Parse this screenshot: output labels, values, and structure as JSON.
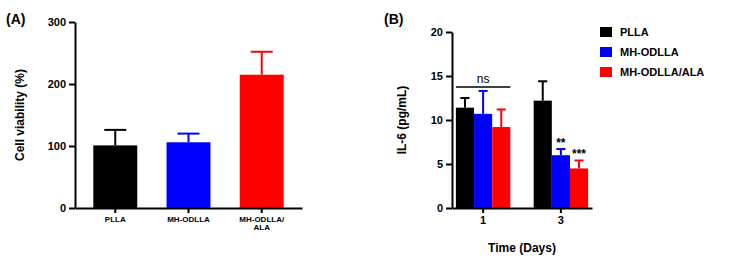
{
  "chart_data": [
    {
      "type": "bar",
      "title": "(A)",
      "categories": [
        "PLLA",
        "MH-ODLLA",
        "MH-ODLLA/\nALA"
      ],
      "values": [
        101,
        106,
        215
      ],
      "errors": [
        25,
        14,
        37
      ],
      "colors": [
        "#000000",
        "#0000ff",
        "#ff0000"
      ],
      "ylabel": "Cell viability (%)",
      "ylim": [
        0,
        300
      ],
      "yticks": [
        0,
        100,
        200,
        300
      ]
    },
    {
      "type": "bar",
      "title": "(B)",
      "categories": [
        "1",
        "3"
      ],
      "xlabel": "Time (Days)",
      "ylabel": "IL-6 (pg/mL)",
      "ylim": [
        0,
        20
      ],
      "yticks": [
        0,
        5,
        10,
        15,
        20
      ],
      "legend": "upper right",
      "series": [
        {
          "name": "PLLA",
          "color": "#000000",
          "values": [
            11.4,
            12.2
          ],
          "errors": [
            1.1,
            2.2
          ]
        },
        {
          "name": "MH-ODLLA",
          "color": "#0000ff",
          "values": [
            10.7,
            6.0
          ],
          "errors": [
            2.6,
            0.7
          ]
        },
        {
          "name": "MH-ODLLA/ALA",
          "color": "#ff0000",
          "values": [
            9.2,
            4.5
          ],
          "errors": [
            2.0,
            0.9
          ]
        }
      ],
      "annotations": [
        {
          "text": "ns",
          "category": 0
        },
        {
          "text": "**",
          "category": 1,
          "series": 1
        },
        {
          "text": "***",
          "category": 1,
          "series": 2
        }
      ]
    }
  ]
}
